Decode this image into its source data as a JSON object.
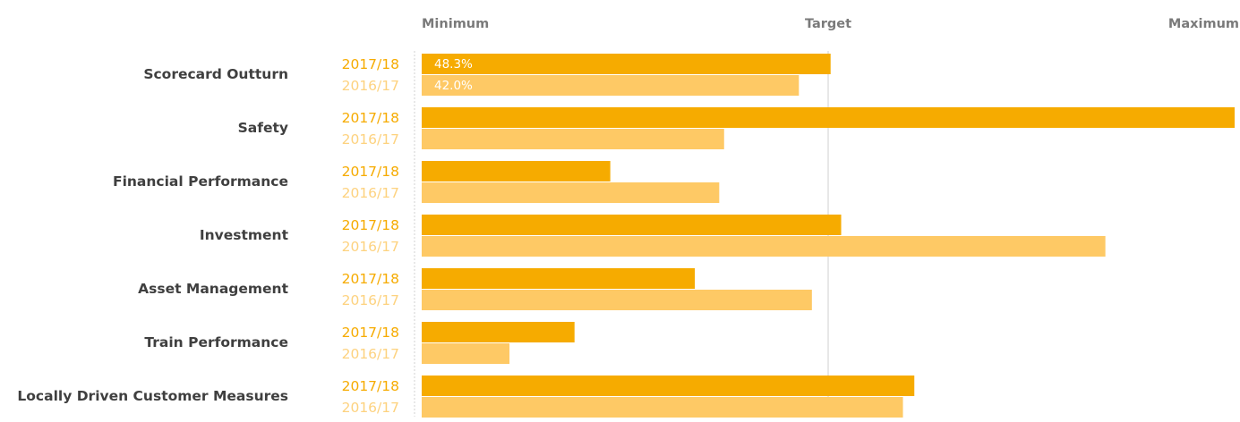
{
  "chart_data": {
    "type": "bar",
    "orientation": "horizontal",
    "axis_labels": [
      "Minimum",
      "Target",
      "Maximum"
    ],
    "xlim": [
      0,
      100
    ],
    "target": 50,
    "categories": [
      "Scorecard Outturn",
      "Safety",
      "Financial Performance",
      "Investment",
      "Asset Management",
      "Train Performance",
      "Locally Driven Customer Measures"
    ],
    "series": [
      {
        "name": "2017/18",
        "color": "#f6ab00",
        "year_label_color": "#f6ab00",
        "values": [
          50.3,
          100,
          23.2,
          51.6,
          33.6,
          18.8,
          60.6
        ],
        "data_labels": [
          "48.3%",
          "",
          "",
          "",
          "",
          "",
          ""
        ]
      },
      {
        "name": "2016/17",
        "color": "#fec965",
        "year_label_color": "#fdd27f",
        "values": [
          46.4,
          37.2,
          36.6,
          84.1,
          48.0,
          10.8,
          59.2
        ],
        "data_labels": [
          "42.0%",
          "",
          "",
          "",
          "",
          "",
          ""
        ]
      }
    ],
    "grid": false,
    "legend": "none"
  }
}
